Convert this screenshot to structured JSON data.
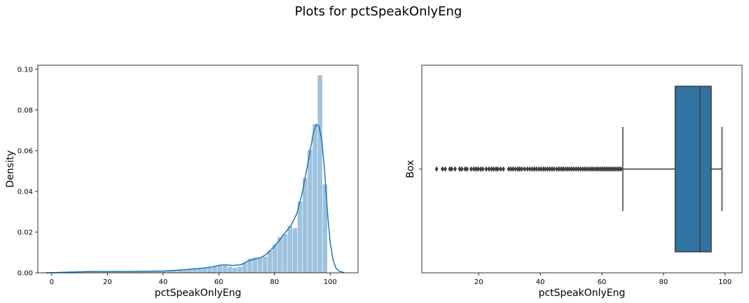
{
  "figure": {
    "suptitle": "Plots for pctSpeakOnlyEng"
  },
  "colors": {
    "hist_fill": "#9ec3df",
    "kde_line": "#1f77b4",
    "box_fill": "#3274a1",
    "box_edge": "#3f3f3f",
    "outlier": "#3f3f3f"
  },
  "chart_data": [
    {
      "type": "histogram",
      "xlabel": "pctSpeakOnlyEng",
      "ylabel": "Density",
      "xlim": [
        -5,
        110
      ],
      "ylim": [
        0,
        0.102
      ],
      "xticks": [
        0,
        20,
        40,
        60,
        80,
        100
      ],
      "yticks": [
        0.0,
        0.02,
        0.04,
        0.06,
        0.08,
        0.1
      ],
      "xtick_labels": [
        "0",
        "20",
        "40",
        "60",
        "80",
        "100"
      ],
      "ytick_labels": [
        "0.00",
        "0.02",
        "0.04",
        "0.06",
        "0.08",
        "0.10"
      ],
      "bins": [
        [
          5.5,
          7.3,
          0.0004
        ],
        [
          7.3,
          9.1,
          0.0004
        ],
        [
          9.1,
          10.9,
          0.0006
        ],
        [
          10.9,
          12.7,
          0.0007
        ],
        [
          12.7,
          14.5,
          0.0007
        ],
        [
          14.5,
          16.3,
          0.0008
        ],
        [
          16.3,
          18.1,
          0.0008
        ],
        [
          18.1,
          19.9,
          0.0007
        ],
        [
          19.9,
          21.7,
          0.0006
        ],
        [
          21.7,
          23.5,
          0.0006
        ],
        [
          23.5,
          25.3,
          0.0006
        ],
        [
          25.3,
          27.1,
          0.0008
        ],
        [
          27.1,
          28.9,
          0.0006
        ],
        [
          28.9,
          30.7,
          0.0007
        ],
        [
          30.7,
          32.5,
          0.0007
        ],
        [
          32.5,
          34.3,
          0.0008
        ],
        [
          34.3,
          36.1,
          0.0007
        ],
        [
          36.1,
          37.9,
          0.0007
        ],
        [
          37.9,
          39.7,
          0.0008
        ],
        [
          39.7,
          41.5,
          0.0008
        ],
        [
          41.5,
          43.3,
          0.001
        ],
        [
          43.3,
          45.1,
          0.0012
        ],
        [
          45.1,
          46.9,
          0.0015
        ],
        [
          46.9,
          48.7,
          0.0016
        ],
        [
          48.7,
          50.5,
          0.0016
        ],
        [
          50.5,
          52.3,
          0.002
        ],
        [
          52.3,
          54.1,
          0.0024
        ],
        [
          54.1,
          55.9,
          0.0026
        ],
        [
          55.9,
          57.7,
          0.0025
        ],
        [
          57.7,
          59.5,
          0.003
        ],
        [
          59.5,
          61.3,
          0.0035
        ],
        [
          61.3,
          63.1,
          0.0035
        ],
        [
          63.1,
          64.9,
          0.003
        ],
        [
          64.9,
          66.7,
          0.0025
        ],
        [
          66.7,
          68.5,
          0.003
        ],
        [
          68.5,
          70.3,
          0.005
        ],
        [
          70.3,
          72.1,
          0.007
        ],
        [
          72.1,
          73.9,
          0.0075
        ],
        [
          73.9,
          75.7,
          0.0073
        ],
        [
          75.7,
          77.5,
          0.008
        ],
        [
          77.5,
          79.3,
          0.011
        ],
        [
          79.3,
          81.1,
          0.014
        ],
        [
          81.1,
          82.9,
          0.0175
        ],
        [
          82.9,
          84.7,
          0.019
        ],
        [
          84.7,
          86.5,
          0.023
        ],
        [
          86.5,
          88.3,
          0.022
        ],
        [
          88.3,
          90.1,
          0.035
        ],
        [
          90.1,
          91.9,
          0.0465
        ],
        [
          91.9,
          93.7,
          0.0605
        ],
        [
          93.7,
          95.5,
          0.073
        ],
        [
          95.5,
          97.3,
          0.097
        ],
        [
          97.3,
          99.1,
          0.0435
        ]
      ],
      "kde": [
        [
          -2,
          0.0
        ],
        [
          0,
          0.0001
        ],
        [
          5,
          0.0003
        ],
        [
          10,
          0.0005
        ],
        [
          15,
          0.0007
        ],
        [
          20,
          0.0007
        ],
        [
          25,
          0.0007
        ],
        [
          30,
          0.0007
        ],
        [
          35,
          0.0008
        ],
        [
          40,
          0.0009
        ],
        [
          45,
          0.0013
        ],
        [
          50,
          0.0018
        ],
        [
          55,
          0.0024
        ],
        [
          58,
          0.003
        ],
        [
          60,
          0.0037
        ],
        [
          62,
          0.0039
        ],
        [
          65,
          0.0036
        ],
        [
          68,
          0.004
        ],
        [
          70,
          0.0055
        ],
        [
          72,
          0.0065
        ],
        [
          75,
          0.0075
        ],
        [
          77,
          0.009
        ],
        [
          80,
          0.013
        ],
        [
          82,
          0.0165
        ],
        [
          84,
          0.02
        ],
        [
          86,
          0.0235
        ],
        [
          88,
          0.029
        ],
        [
          90,
          0.0395
        ],
        [
          92,
          0.054
        ],
        [
          94,
          0.069
        ],
        [
          95,
          0.073
        ],
        [
          96,
          0.072
        ],
        [
          97,
          0.065
        ],
        [
          98,
          0.05
        ],
        [
          99,
          0.03
        ],
        [
          100,
          0.015
        ],
        [
          101,
          0.0065
        ],
        [
          102,
          0.0025
        ],
        [
          103,
          0.001
        ],
        [
          105,
          0.0001
        ]
      ]
    },
    {
      "type": "box",
      "xlabel": "pctSpeakOnlyEng",
      "ylabel": "Box",
      "xlim": [
        1.5,
        105.5
      ],
      "xticks": [
        20,
        40,
        60,
        80,
        100
      ],
      "xtick_labels": [
        "20",
        "40",
        "60",
        "80",
        "100"
      ],
      "q1": 83.8,
      "median": 91.9,
      "q3": 95.5,
      "whisker_low": 66.8,
      "whisker_high": 99.0,
      "outliers": [
        6.3,
        8.2,
        9.1,
        10.6,
        11.2,
        12.3,
        13.8,
        14.5,
        15.6,
        16.2,
        17.5,
        18.4,
        19.1,
        19.8,
        20.6,
        21.3,
        22.4,
        23.3,
        24.1,
        24.8,
        25.6,
        26.2,
        27.1,
        28.0,
        29.7,
        30.4,
        31.1,
        31.9,
        32.7,
        33.3,
        34.0,
        34.9,
        35.8,
        36.6,
        37.4,
        38.1,
        38.8,
        39.6,
        40.3,
        41.0,
        41.7,
        42.4,
        43.1,
        43.8,
        44.5,
        45.4,
        46.1,
        46.8,
        47.4,
        48.1,
        48.8,
        49.5,
        50.2,
        50.9,
        51.6,
        52.3,
        53.0,
        53.7,
        54.4,
        55.1,
        55.8,
        56.5,
        57.1,
        57.8,
        58.4,
        59.0,
        59.6,
        60.2,
        60.8,
        61.4,
        62.0,
        62.6,
        63.2,
        63.8,
        64.4,
        65.0,
        65.6,
        66.2
      ]
    }
  ]
}
